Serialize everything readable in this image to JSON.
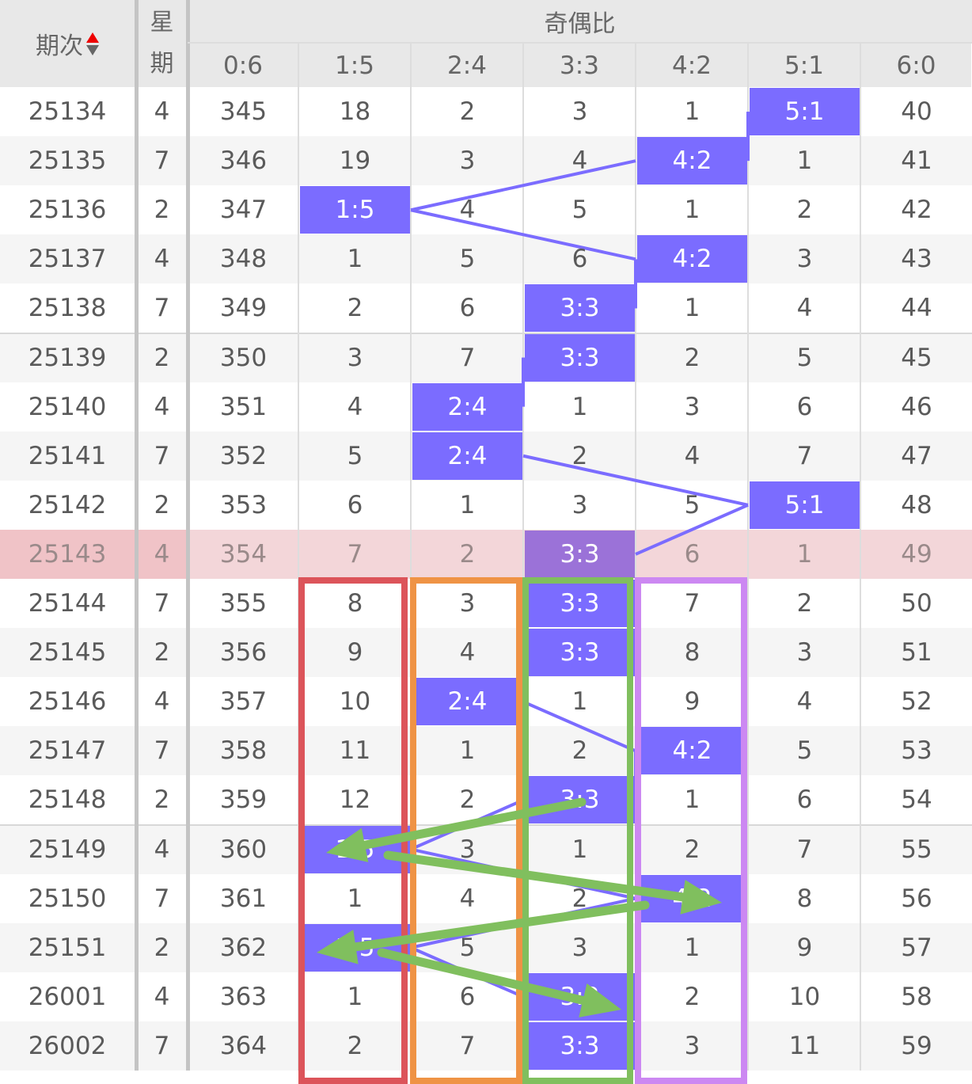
{
  "header": {
    "period_label": "期次",
    "weekday_label": "星期",
    "group_label": "奇偶比",
    "ratio_columns": [
      "0:6",
      "1:5",
      "2:4",
      "3:3",
      "4:2",
      "5:1",
      "6:0"
    ],
    "sort_icon": "sort-up-down-icon"
  },
  "colors": {
    "hit": "#7b6cff",
    "hit_highlight": "#9b72d8",
    "line": "#7b6cff",
    "highlight_row": "#f3d6d9",
    "highlight_row_left": "#f0c3c7",
    "alt_row": "#f5f5f5",
    "box_red": "#dc545a",
    "box_orange": "#ef9345",
    "box_green": "#80bf5e",
    "box_purple": "#cc88f2",
    "arrow": "#80bf5e"
  },
  "highlight_period": "25143",
  "rows": [
    {
      "period": "25134",
      "weekday": "4",
      "cells": [
        "345",
        "18",
        "2",
        "3",
        "1",
        "5:1",
        "40"
      ],
      "hit": 5
    },
    {
      "period": "25135",
      "weekday": "7",
      "cells": [
        "346",
        "19",
        "3",
        "4",
        "4:2",
        "1",
        "41"
      ],
      "hit": 4
    },
    {
      "period": "25136",
      "weekday": "2",
      "cells": [
        "347",
        "1:5",
        "4",
        "5",
        "1",
        "2",
        "42"
      ],
      "hit": 1
    },
    {
      "period": "25137",
      "weekday": "4",
      "cells": [
        "348",
        "1",
        "5",
        "6",
        "4:2",
        "3",
        "43"
      ],
      "hit": 4
    },
    {
      "period": "25138",
      "weekday": "7",
      "cells": [
        "349",
        "2",
        "6",
        "3:3",
        "1",
        "4",
        "44"
      ],
      "hit": 3
    },
    {
      "period": "25139",
      "weekday": "2",
      "cells": [
        "350",
        "3",
        "7",
        "3:3",
        "2",
        "5",
        "45"
      ],
      "hit": 3
    },
    {
      "period": "25140",
      "weekday": "4",
      "cells": [
        "351",
        "4",
        "2:4",
        "1",
        "3",
        "6",
        "46"
      ],
      "hit": 2
    },
    {
      "period": "25141",
      "weekday": "7",
      "cells": [
        "352",
        "5",
        "2:4",
        "2",
        "4",
        "7",
        "47"
      ],
      "hit": 2
    },
    {
      "period": "25142",
      "weekday": "2",
      "cells": [
        "353",
        "6",
        "1",
        "3",
        "5",
        "5:1",
        "48"
      ],
      "hit": 5
    },
    {
      "period": "25143",
      "weekday": "4",
      "cells": [
        "354",
        "7",
        "2",
        "3:3",
        "6",
        "1",
        "49"
      ],
      "hit": 3
    },
    {
      "period": "25144",
      "weekday": "7",
      "cells": [
        "355",
        "8",
        "3",
        "3:3",
        "7",
        "2",
        "50"
      ],
      "hit": 3
    },
    {
      "period": "25145",
      "weekday": "2",
      "cells": [
        "356",
        "9",
        "4",
        "3:3",
        "8",
        "3",
        "51"
      ],
      "hit": 3
    },
    {
      "period": "25146",
      "weekday": "4",
      "cells": [
        "357",
        "10",
        "2:4",
        "1",
        "9",
        "4",
        "52"
      ],
      "hit": 2
    },
    {
      "period": "25147",
      "weekday": "7",
      "cells": [
        "358",
        "11",
        "1",
        "2",
        "4:2",
        "5",
        "53"
      ],
      "hit": 4
    },
    {
      "period": "25148",
      "weekday": "2",
      "cells": [
        "359",
        "12",
        "2",
        "3:3",
        "1",
        "6",
        "54"
      ],
      "hit": 3
    },
    {
      "period": "25149",
      "weekday": "4",
      "cells": [
        "360",
        "1:5",
        "3",
        "1",
        "2",
        "7",
        "55"
      ],
      "hit": 1
    },
    {
      "period": "25150",
      "weekday": "7",
      "cells": [
        "361",
        "1",
        "4",
        "2",
        "4:2",
        "8",
        "56"
      ],
      "hit": 4
    },
    {
      "period": "25151",
      "weekday": "2",
      "cells": [
        "362",
        "1:5",
        "5",
        "3",
        "1",
        "9",
        "57"
      ],
      "hit": 1
    },
    {
      "period": "26001",
      "weekday": "4",
      "cells": [
        "363",
        "1",
        "6",
        "3:3",
        "2",
        "10",
        "58"
      ],
      "hit": 3
    },
    {
      "period": "26002",
      "weekday": "7",
      "cells": [
        "364",
        "2",
        "7",
        "3:3",
        "3",
        "11",
        "59"
      ],
      "hit": 3
    }
  ]
}
